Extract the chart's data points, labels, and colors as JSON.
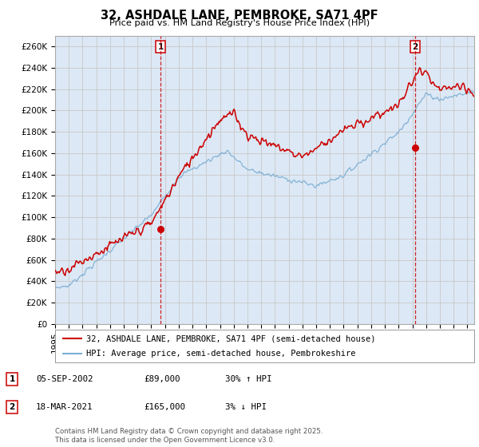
{
  "title": "32, ASHDALE LANE, PEMBROKE, SA71 4PF",
  "subtitle": "Price paid vs. HM Land Registry's House Price Index (HPI)",
  "xlim_start": 1995.0,
  "xlim_end": 2025.5,
  "ylim_min": 0,
  "ylim_max": 270000,
  "yticks": [
    0,
    20000,
    40000,
    60000,
    80000,
    100000,
    120000,
    140000,
    160000,
    180000,
    200000,
    220000,
    240000,
    260000
  ],
  "ytick_labels": [
    "£0",
    "£20K",
    "£40K",
    "£60K",
    "£80K",
    "£100K",
    "£120K",
    "£140K",
    "£160K",
    "£180K",
    "£200K",
    "£220K",
    "£240K",
    "£260K"
  ],
  "xticks": [
    1995,
    1996,
    1997,
    1998,
    1999,
    2000,
    2001,
    2002,
    2003,
    2004,
    2005,
    2006,
    2007,
    2008,
    2009,
    2010,
    2011,
    2012,
    2013,
    2014,
    2015,
    2016,
    2017,
    2018,
    2019,
    2020,
    2021,
    2022,
    2023,
    2024,
    2025
  ],
  "marker1_x": 2002.676,
  "marker1_y": 89000,
  "marker1_label": "1",
  "marker2_x": 2021.21,
  "marker2_y": 165000,
  "marker2_label": "2",
  "red_color": "#cc0000",
  "blue_color": "#7aadd4",
  "grid_color": "#c8c8c8",
  "plot_bg_color": "#dce8f5",
  "legend_line1": "32, ASHDALE LANE, PEMBROKE, SA71 4PF (semi-detached house)",
  "legend_line2": "HPI: Average price, semi-detached house, Pembrokeshire",
  "annotation1": [
    "1",
    "05-SEP-2002",
    "£89,000",
    "30% ↑ HPI"
  ],
  "annotation2": [
    "2",
    "18-MAR-2021",
    "£165,000",
    "3% ↓ HPI"
  ],
  "footnote": "Contains HM Land Registry data © Crown copyright and database right 2025.\nThis data is licensed under the Open Government Licence v3.0.",
  "background_color": "#ffffff"
}
